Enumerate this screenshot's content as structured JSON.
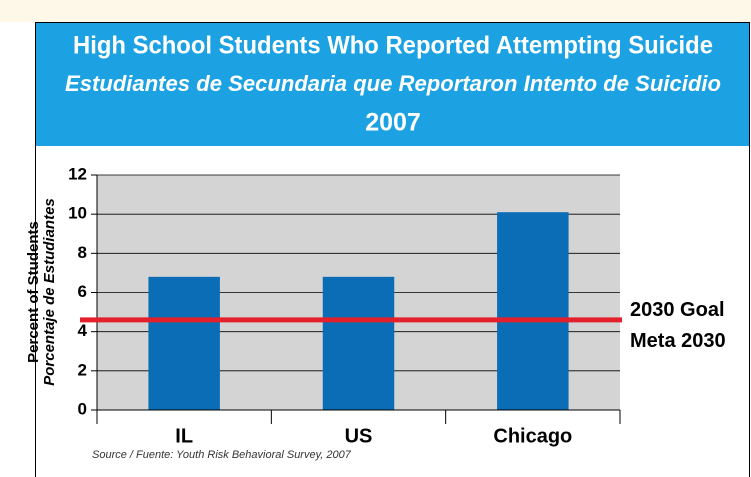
{
  "chart_data": {
    "type": "bar",
    "title": "High School Students Who Reported Attempting Suicide",
    "subtitle": "Estudiantes de Secundaria que Reportaron Intento de Suicidio",
    "year": "2007",
    "y_label": "Percent of Students",
    "y_label_es": "Porcentaje de Estudiantes",
    "categories": [
      "IL",
      "US",
      "Chicago"
    ],
    "values": [
      6.8,
      6.8,
      10.1
    ],
    "color": "#0b6db5",
    "ylim": [
      0,
      12
    ],
    "yticks": [
      0,
      2,
      4,
      6,
      8,
      10,
      12
    ],
    "grid": true,
    "goal": {
      "value": 4.6,
      "label": "2030 Goal",
      "label_es": "Meta 2030",
      "color": "#e3202b"
    },
    "source": "Source / Fuente: Youth Risk Behavioral Survey, 2007"
  }
}
